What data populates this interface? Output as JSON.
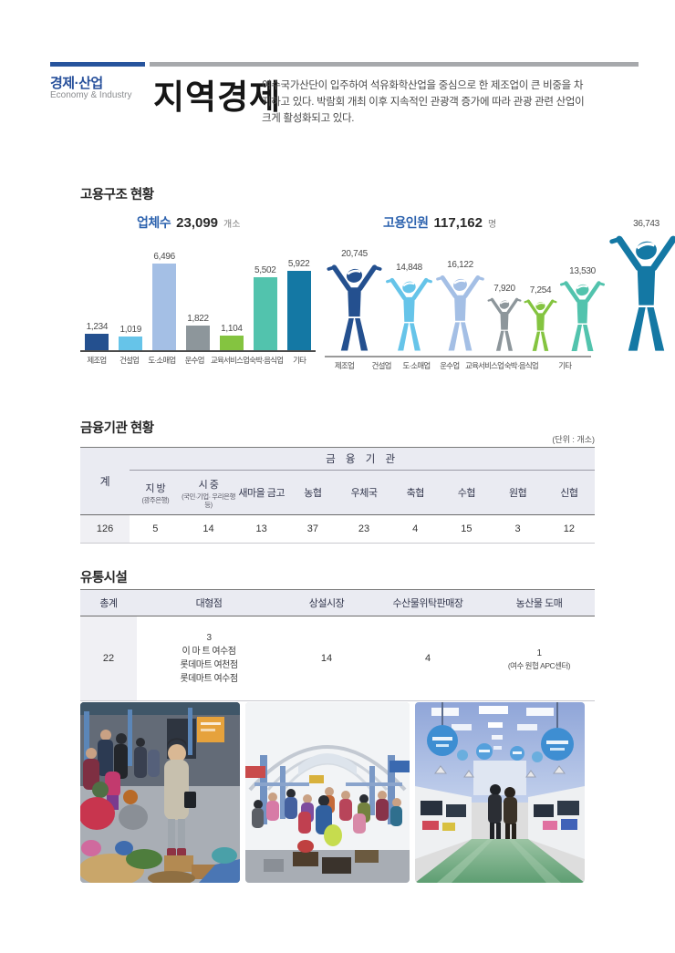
{
  "header": {
    "category": "경제·산업",
    "category_en": "Economy & Industry",
    "title": "지역경제",
    "intro": "여수국가산단이 입주하여 석유화학산업을 중심으로 한 제조업이 큰 비중을 차지하고 있다. 박람회 개최 이후 지속적인 관광객 증가에 따라 관광 관련 산업이 크게 활성화되고 있다.",
    "accent_color": "#27549d",
    "rule_gray_color": "#a7a9ac"
  },
  "employment": {
    "heading": "고용구조 현황",
    "left_title": "업체수",
    "left_total": "23,099",
    "left_unit": "개소",
    "right_title": "고용인원",
    "right_total": "117,162",
    "right_unit": "명"
  },
  "chart_data": [
    {
      "type": "bar",
      "title": "업체수",
      "unit": "개소",
      "total": 23099,
      "categories": [
        "제조업",
        "건설업",
        "도·소매업",
        "운수업",
        "교육서비스업",
        "숙박·음식업",
        "기타"
      ],
      "values": [
        1234,
        1019,
        6496,
        1822,
        1104,
        5502,
        5922
      ],
      "value_labels": [
        "1,234",
        "1,019",
        "6,496",
        "1,822",
        "1,104",
        "5,502",
        "5,922"
      ],
      "colors": [
        "#24508f",
        "#66c4e9",
        "#a4bfe5",
        "#8d969b",
        "#84c440",
        "#52c3ad",
        "#1478a4"
      ],
      "xlabel": "",
      "ylabel": "",
      "ylim": [
        0,
        6500
      ],
      "grid": false,
      "legend": "none"
    },
    {
      "type": "pictogram-bar",
      "title": "고용인원",
      "unit": "명",
      "total": 117162,
      "categories": [
        "제조업",
        "건설업",
        "도·소매업",
        "운수업",
        "교육서비스업",
        "숙박·음식업",
        "기타"
      ],
      "values": [
        20745,
        14848,
        16122,
        7920,
        7254,
        13530,
        36743
      ],
      "value_labels": [
        "20,745",
        "14,848",
        "16,122",
        "7,920",
        "7,254",
        "13,530",
        "36,743"
      ],
      "colors": [
        "#24508f",
        "#66c4e9",
        "#a4bfe5",
        "#8d969b",
        "#84c440",
        "#52c3ad",
        "#1478a4"
      ],
      "note": "person-figure height scales with sqrt(value)",
      "grid": false,
      "legend": "none"
    }
  ],
  "finance": {
    "heading": "금융기관 현황",
    "unit_note": "(단위 : 개소)",
    "group_header": "금 융 기 관",
    "total_col": {
      "label": "계",
      "value": "126"
    },
    "columns": [
      {
        "label": "지 방",
        "sub": "(광주은행)",
        "value": "5"
      },
      {
        "label": "시 중",
        "sub": "(국민·기업· 우리은행 등)",
        "value": "14"
      },
      {
        "label": "새마을 금고",
        "sub": "",
        "value": "13"
      },
      {
        "label": "농협",
        "sub": "",
        "value": "37"
      },
      {
        "label": "우체국",
        "sub": "",
        "value": "23"
      },
      {
        "label": "축협",
        "sub": "",
        "value": "4"
      },
      {
        "label": "수협",
        "sub": "",
        "value": "15"
      },
      {
        "label": "원협",
        "sub": "",
        "value": "3"
      },
      {
        "label": "신협",
        "sub": "",
        "value": "12"
      }
    ]
  },
  "distribution": {
    "heading": "유통시설",
    "columns": [
      "총계",
      "대형점",
      "상설시장",
      "수산물위탁판매장",
      "농산물 도매"
    ],
    "row": {
      "total": "22",
      "large_store_count": "3",
      "large_stores": [
        "이 마 트 여수점",
        "롯데마트 여천점",
        "롯데마트 여수점"
      ],
      "permanent_market": "14",
      "fish_auction": "4",
      "agri_wholesale_count": "1",
      "agri_wholesale_note": "(여수 원협 APC센터)"
    }
  },
  "photos": [
    {
      "name": "outdoor-market-photo"
    },
    {
      "name": "covered-market-hall-photo"
    },
    {
      "name": "fish-market-interior-photo"
    }
  ]
}
